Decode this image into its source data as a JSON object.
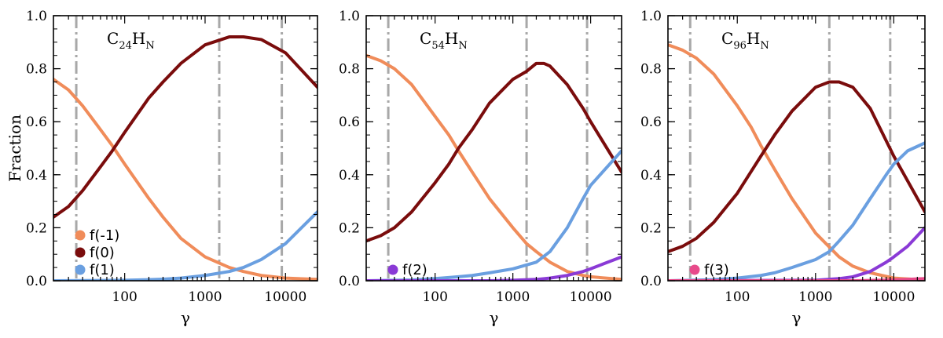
{
  "chart_data": [
    {
      "type": "line",
      "title_main": "C",
      "title_sub1": "24",
      "title_mid": "H",
      "title_sub2": "N",
      "xlabel": "γ",
      "ylabel": "Fraction",
      "xscale": "log",
      "xlim": [
        13,
        25000
      ],
      "ylim": [
        0.0,
        1.0
      ],
      "xticks": [
        100,
        1000,
        10000
      ],
      "xtick_labels": [
        "100",
        "1000",
        "10000"
      ],
      "yticks": [
        0.0,
        0.2,
        0.4,
        0.6,
        0.8,
        1.0
      ],
      "ytick_labels": [
        "0.0",
        "0.2",
        "0.4",
        "0.6",
        "0.8",
        "1.0"
      ],
      "vlines": [
        {
          "x": 25,
          "style": "dash-dot"
        },
        {
          "x": 1500,
          "style": "dash-dot"
        },
        {
          "x": 9000,
          "style": "dash-dot"
        }
      ],
      "series": [
        {
          "name": "f(-1)",
          "label": "f(-1)",
          "color": "#f08c5a",
          "x": [
            13,
            20,
            30,
            50,
            70,
            100,
            200,
            300,
            500,
            1000,
            2000,
            3000,
            5000,
            10000,
            25000
          ],
          "values": [
            0.76,
            0.72,
            0.66,
            0.57,
            0.51,
            0.44,
            0.31,
            0.24,
            0.16,
            0.09,
            0.05,
            0.035,
            0.02,
            0.01,
            0.005
          ]
        },
        {
          "name": "f(0)",
          "label": "f(0)",
          "color": "#7a0c0c",
          "x": [
            13,
            20,
            30,
            50,
            70,
            100,
            200,
            300,
            500,
            1000,
            2000,
            3000,
            5000,
            10000,
            25000
          ],
          "values": [
            0.24,
            0.28,
            0.34,
            0.43,
            0.49,
            0.56,
            0.69,
            0.75,
            0.82,
            0.89,
            0.92,
            0.92,
            0.91,
            0.86,
            0.73
          ]
        },
        {
          "name": "f(1)",
          "label": "f(1)",
          "color": "#6a9fe0",
          "x": [
            13,
            50,
            100,
            200,
            300,
            500,
            1000,
            2000,
            3000,
            5000,
            10000,
            25000
          ],
          "values": [
            0.0,
            0.001,
            0.002,
            0.004,
            0.006,
            0.01,
            0.02,
            0.035,
            0.05,
            0.08,
            0.14,
            0.26
          ]
        }
      ],
      "legend": [
        "f(-1)",
        "f(0)",
        "f(1)"
      ],
      "legend_position": "bottom-left"
    },
    {
      "type": "line",
      "title_main": "C",
      "title_sub1": "54",
      "title_mid": "H",
      "title_sub2": "N",
      "xlabel": "γ",
      "ylabel": "",
      "xscale": "log",
      "xlim": [
        13,
        25000
      ],
      "ylim": [
        0.0,
        1.0
      ],
      "xticks": [
        100,
        1000,
        10000
      ],
      "xtick_labels": [
        "100",
        "1000",
        "10000"
      ],
      "yticks": [
        0.0,
        0.2,
        0.4,
        0.6,
        0.8,
        1.0
      ],
      "ytick_labels": [
        "0.0",
        "0.2",
        "0.4",
        "0.6",
        "0.8",
        "1.0"
      ],
      "vlines": [
        {
          "x": 25,
          "style": "dash-dot"
        },
        {
          "x": 1500,
          "style": "dash-dot"
        },
        {
          "x": 9000,
          "style": "dash-dot"
        }
      ],
      "series": [
        {
          "name": "f(-1)",
          "label": "f(-1)",
          "color": "#f08c5a",
          "x": [
            13,
            20,
            30,
            50,
            100,
            150,
            200,
            300,
            500,
            1000,
            1500,
            2000,
            3000,
            5000,
            8000,
            10000,
            25000
          ],
          "values": [
            0.85,
            0.83,
            0.8,
            0.74,
            0.62,
            0.55,
            0.49,
            0.41,
            0.31,
            0.2,
            0.14,
            0.11,
            0.07,
            0.035,
            0.02,
            0.015,
            0.005
          ]
        },
        {
          "name": "f(0)",
          "label": "f(0)",
          "color": "#7a0c0c",
          "x": [
            13,
            20,
            30,
            50,
            100,
            150,
            200,
            300,
            500,
            1000,
            1500,
            2000,
            2500,
            3000,
            5000,
            8000,
            10000,
            25000
          ],
          "values": [
            0.15,
            0.17,
            0.2,
            0.26,
            0.37,
            0.44,
            0.5,
            0.57,
            0.67,
            0.76,
            0.79,
            0.82,
            0.82,
            0.81,
            0.74,
            0.65,
            0.6,
            0.41
          ]
        },
        {
          "name": "f(1)",
          "label": "f(1)",
          "color": "#6a9fe0",
          "x": [
            13,
            50,
            100,
            200,
            300,
            500,
            1000,
            2000,
            3000,
            5000,
            8000,
            10000,
            25000
          ],
          "values": [
            0.0,
            0.003,
            0.008,
            0.015,
            0.02,
            0.03,
            0.045,
            0.07,
            0.11,
            0.2,
            0.31,
            0.36,
            0.49
          ]
        },
        {
          "name": "f(2)",
          "label": "f(2)",
          "color": "#8a3ad6",
          "x": [
            13,
            500,
            1000,
            2000,
            3000,
            5000,
            8000,
            10000,
            15000,
            25000
          ],
          "values": [
            0.0,
            0.0,
            0.002,
            0.005,
            0.01,
            0.02,
            0.035,
            0.045,
            0.065,
            0.09
          ]
        }
      ],
      "legend": [
        "f(2)"
      ],
      "legend_position": "bottom-left"
    },
    {
      "type": "line",
      "title_main": "C",
      "title_sub1": "96",
      "title_mid": "H",
      "title_sub2": "N",
      "xlabel": "γ",
      "ylabel": "",
      "xscale": "log",
      "xlim": [
        13,
        25000
      ],
      "ylim": [
        0.0,
        1.0
      ],
      "xticks": [
        100,
        1000,
        10000
      ],
      "xtick_labels": [
        "100",
        "1000",
        "10000"
      ],
      "yticks": [
        0.0,
        0.2,
        0.4,
        0.6,
        0.8,
        1.0
      ],
      "ytick_labels": [
        "0.0",
        "0.2",
        "0.4",
        "0.6",
        "0.8",
        "1.0"
      ],
      "vlines": [
        {
          "x": 25,
          "style": "dash-dot"
        },
        {
          "x": 1500,
          "style": "dash-dot"
        },
        {
          "x": 9000,
          "style": "dash-dot"
        }
      ],
      "series": [
        {
          "name": "f(-1)",
          "label": "f(-1)",
          "color": "#f08c5a",
          "x": [
            13,
            20,
            30,
            50,
            100,
            150,
            200,
            300,
            500,
            1000,
            2000,
            3000,
            5000,
            10000,
            25000
          ],
          "values": [
            0.89,
            0.87,
            0.84,
            0.78,
            0.66,
            0.58,
            0.51,
            0.42,
            0.31,
            0.18,
            0.09,
            0.055,
            0.03,
            0.01,
            0.003
          ]
        },
        {
          "name": "f(0)",
          "label": "f(0)",
          "color": "#7a0c0c",
          "x": [
            13,
            20,
            30,
            50,
            100,
            200,
            300,
            500,
            1000,
            1500,
            2000,
            3000,
            5000,
            10000,
            25000
          ],
          "values": [
            0.11,
            0.13,
            0.16,
            0.22,
            0.33,
            0.47,
            0.55,
            0.64,
            0.73,
            0.75,
            0.75,
            0.73,
            0.65,
            0.47,
            0.26
          ]
        },
        {
          "name": "f(1)",
          "label": "f(1)",
          "color": "#6a9fe0",
          "x": [
            13,
            50,
            100,
            200,
            300,
            500,
            1000,
            1500,
            2000,
            3000,
            5000,
            8000,
            10000,
            15000,
            25000
          ],
          "values": [
            0.0,
            0.004,
            0.01,
            0.02,
            0.03,
            0.05,
            0.08,
            0.11,
            0.15,
            0.21,
            0.31,
            0.4,
            0.44,
            0.49,
            0.52
          ]
        },
        {
          "name": "f(2)",
          "label": "f(2)",
          "color": "#8a3ad6",
          "x": [
            13,
            1000,
            2000,
            3000,
            5000,
            8000,
            10000,
            15000,
            25000
          ],
          "values": [
            0.0,
            0.002,
            0.008,
            0.015,
            0.035,
            0.07,
            0.09,
            0.13,
            0.2
          ]
        },
        {
          "name": "f(3)",
          "label": "f(3)",
          "color": "#e84a8a",
          "x": [
            13,
            3000,
            5000,
            10000,
            25000
          ],
          "values": [
            0.0,
            0.0,
            0.001,
            0.003,
            0.008
          ]
        }
      ],
      "legend": [
        "f(3)"
      ],
      "legend_position": "bottom-left"
    }
  ]
}
